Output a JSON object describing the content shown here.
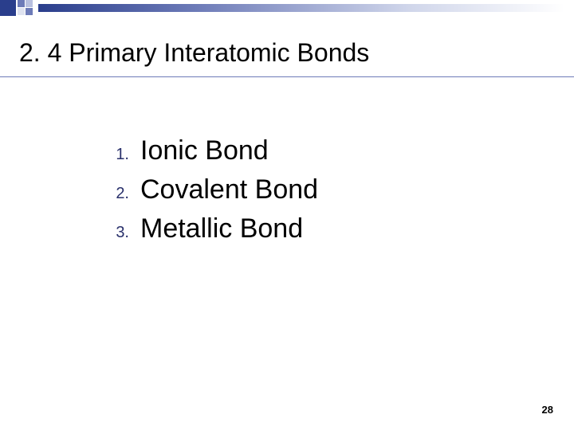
{
  "title": "2. 4 Primary Interatomic Bonds",
  "list": {
    "items": [
      {
        "num": "1.",
        "text": "Ionic Bond"
      },
      {
        "num": "2.",
        "text": "Covalent Bond"
      },
      {
        "num": "3.",
        "text": "Metallic Bond"
      }
    ]
  },
  "page_number": "28",
  "colors": {
    "accent_dark": "#2a3e8c",
    "accent_mid": "#6d7bb8",
    "list_num": "#29306b",
    "text": "#000000",
    "background": "#ffffff"
  },
  "fonts": {
    "title_size_pt": 32,
    "list_num_size_pt": 20,
    "list_text_size_pt": 34,
    "page_num_size_pt": 13
  }
}
